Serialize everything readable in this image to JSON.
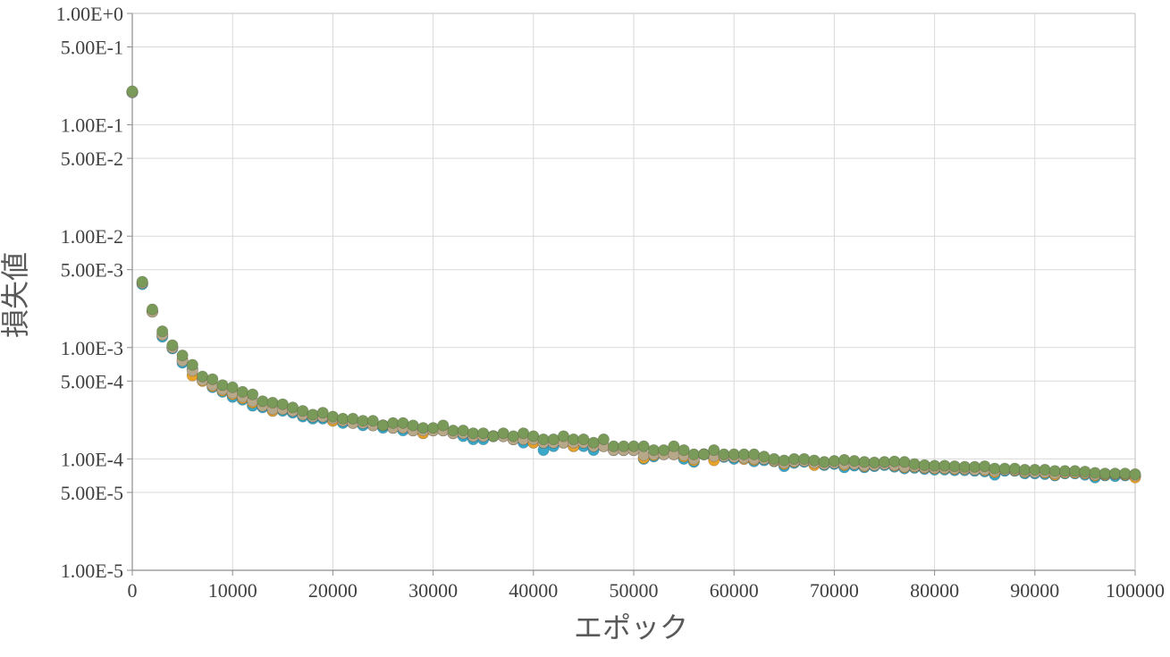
{
  "chart_data": {
    "type": "scatter",
    "title": "",
    "xlabel": "エポック",
    "ylabel": "損失値",
    "y_scale": "log",
    "xlim": [
      0,
      100000
    ],
    "ylim": [
      1e-05,
      1
    ],
    "grid": true,
    "legend": "none",
    "x_ticks": [
      0,
      10000,
      20000,
      30000,
      40000,
      50000,
      60000,
      70000,
      80000,
      90000,
      100000
    ],
    "x_tick_labels": [
      "0",
      "10000",
      "20000",
      "30000",
      "40000",
      "50000",
      "60000",
      "70000",
      "80000",
      "90000",
      "100000"
    ],
    "y_ticks": [
      1,
      0.5,
      0.1,
      0.05,
      0.01,
      0.005,
      0.001,
      0.0005,
      0.0001,
      5e-05,
      1e-05
    ],
    "y_tick_labels": [
      "1.00E+0",
      "5.00E-1",
      "1.00E-1",
      "5.00E-2",
      "1.00E-2",
      "5.00E-3",
      "1.00E-3",
      "5.00E-4",
      "1.00E-4",
      "5.00E-5",
      "1.00E-5"
    ],
    "series": [
      {
        "color": "#3aa8c8",
        "x": [
          0,
          1000,
          2000,
          3000,
          4000,
          5000,
          6000,
          7000,
          8000,
          9000,
          10000,
          11000,
          12000,
          13000,
          14000,
          15000,
          16000,
          17000,
          18000,
          19000,
          20000,
          21000,
          22000,
          23000,
          24000,
          25000,
          26000,
          27000,
          28000,
          29000,
          30000,
          31000,
          32000,
          33000,
          34000,
          35000,
          36000,
          37000,
          38000,
          39000,
          40000,
          41000,
          42000,
          43000,
          44000,
          45000,
          46000,
          47000,
          48000,
          49000,
          50000,
          51000,
          52000,
          53000,
          54000,
          55000,
          56000,
          57000,
          58000,
          59000,
          60000,
          61000,
          62000,
          63000,
          64000,
          65000,
          66000,
          67000,
          68000,
          69000,
          70000,
          71000,
          72000,
          73000,
          74000,
          75000,
          76000,
          77000,
          78000,
          79000,
          80000,
          81000,
          82000,
          83000,
          84000,
          85000,
          86000,
          87000,
          88000,
          89000,
          90000,
          91000,
          92000,
          93000,
          94000,
          95000,
          96000,
          97000,
          98000,
          99000,
          100000
        ],
        "y": [
          0.195,
          0.0037,
          0.0021,
          0.00125,
          0.00098,
          0.00073,
          0.00064,
          0.00052,
          0.00044,
          0.0004,
          0.00036,
          0.00034,
          0.0003,
          0.00029,
          0.00027,
          0.00027,
          0.00026,
          0.00024,
          0.00023,
          0.00023,
          0.00022,
          0.00021,
          0.00021,
          0.0002,
          0.0002,
          0.00019,
          0.00019,
          0.00018,
          0.00018,
          0.00017,
          0.00018,
          0.00018,
          0.00017,
          0.00016,
          0.00015,
          0.00015,
          0.00016,
          0.00016,
          0.00015,
          0.00014,
          0.00014,
          0.00012,
          0.00013,
          0.00014,
          0.00013,
          0.00013,
          0.00012,
          0.00013,
          0.00012,
          0.00012,
          0.00012,
          0.0001,
          0.000105,
          0.00011,
          0.00011,
          0.0001,
          9.4e-05,
          0.00011,
          0.000102,
          0.000104,
          0.0001,
          0.0001,
          9.5e-05,
          9.7e-05,
          9.5e-05,
          8.6e-05,
          9.2e-05,
          9.4e-05,
          9.1e-05,
          8.8e-05,
          9e-05,
          8.4e-05,
          8.7e-05,
          8.4e-05,
          8.6e-05,
          8.8e-05,
          8.5e-05,
          8.2e-05,
          8.3e-05,
          8.1e-05,
          8e-05,
          8e-05,
          7.9e-05,
          7.9e-05,
          7.8e-05,
          7.7e-05,
          7.2e-05,
          7.8e-05,
          7.8e-05,
          7.4e-05,
          7.4e-05,
          7.3e-05,
          7.1e-05,
          7.4e-05,
          7.4e-05,
          7.2e-05,
          6.8e-05,
          7.1e-05,
          7e-05,
          7.1e-05,
          7e-05
        ]
      },
      {
        "color": "#e8a32b",
        "x": [
          0,
          1000,
          2000,
          3000,
          4000,
          5000,
          6000,
          7000,
          8000,
          9000,
          10000,
          11000,
          12000,
          13000,
          14000,
          15000,
          16000,
          17000,
          18000,
          19000,
          20000,
          21000,
          22000,
          23000,
          24000,
          25000,
          26000,
          27000,
          28000,
          29000,
          30000,
          31000,
          32000,
          33000,
          34000,
          35000,
          36000,
          37000,
          38000,
          39000,
          40000,
          41000,
          42000,
          43000,
          44000,
          45000,
          46000,
          47000,
          48000,
          49000,
          50000,
          51000,
          52000,
          53000,
          54000,
          55000,
          56000,
          57000,
          58000,
          59000,
          60000,
          61000,
          62000,
          63000,
          64000,
          65000,
          66000,
          67000,
          68000,
          69000,
          70000,
          71000,
          72000,
          73000,
          74000,
          75000,
          76000,
          77000,
          78000,
          79000,
          80000,
          81000,
          82000,
          83000,
          84000,
          85000,
          86000,
          87000,
          88000,
          89000,
          90000,
          91000,
          92000,
          93000,
          94000,
          95000,
          96000,
          97000,
          98000,
          99000,
          100000
        ],
        "y": [
          0.198,
          0.0038,
          0.0021,
          0.0013,
          0.001,
          0.00078,
          0.00056,
          0.0005,
          0.00045,
          0.00041,
          0.00038,
          0.00035,
          0.00032,
          0.0003,
          0.00027,
          0.00028,
          0.00027,
          0.00025,
          0.00024,
          0.00024,
          0.00022,
          0.00022,
          0.00021,
          0.00021,
          0.0002,
          0.0002,
          0.00019,
          0.00019,
          0.00018,
          0.00017,
          0.00018,
          0.00018,
          0.00017,
          0.00017,
          0.00016,
          0.00016,
          0.00016,
          0.00016,
          0.00015,
          0.00015,
          0.00014,
          0.00014,
          0.00014,
          0.00014,
          0.00013,
          0.00014,
          0.00013,
          0.00013,
          0.00012,
          0.00012,
          0.00012,
          0.000102,
          0.000108,
          0.00011,
          0.00011,
          0.000105,
          9.7e-05,
          0.00011,
          9.7e-05,
          0.000106,
          0.000104,
          0.0001,
          9.8e-05,
          0.0001,
          9.6e-05,
          9e-05,
          9.4e-05,
          9.6e-05,
          8.8e-05,
          9e-05,
          9.2e-05,
          8.8e-05,
          9e-05,
          8.6e-05,
          8.8e-05,
          9e-05,
          8.7e-05,
          8.4e-05,
          8.5e-05,
          8.3e-05,
          8.2e-05,
          8.2e-05,
          8.1e-05,
          8.1e-05,
          8e-05,
          7.9e-05,
          7.6e-05,
          8e-05,
          7.9e-05,
          7.6e-05,
          7.6e-05,
          7.5e-05,
          7.2e-05,
          7.5e-05,
          7.5e-05,
          7.4e-05,
          7.1e-05,
          7.2e-05,
          7.3e-05,
          7.2e-05,
          6.8e-05
        ]
      },
      {
        "color": "#b8a88a",
        "x": [
          0,
          1000,
          2000,
          3000,
          4000,
          5000,
          6000,
          7000,
          8000,
          9000,
          10000,
          11000,
          12000,
          13000,
          14000,
          15000,
          16000,
          17000,
          18000,
          19000,
          20000,
          21000,
          22000,
          23000,
          24000,
          25000,
          26000,
          27000,
          28000,
          29000,
          30000,
          31000,
          32000,
          33000,
          34000,
          35000,
          36000,
          37000,
          38000,
          39000,
          40000,
          41000,
          42000,
          43000,
          44000,
          45000,
          46000,
          47000,
          48000,
          49000,
          50000,
          51000,
          52000,
          53000,
          54000,
          55000,
          56000,
          57000,
          58000,
          59000,
          60000,
          61000,
          62000,
          63000,
          64000,
          65000,
          66000,
          67000,
          68000,
          69000,
          70000,
          71000,
          72000,
          73000,
          74000,
          75000,
          76000,
          77000,
          78000,
          79000,
          80000,
          81000,
          82000,
          83000,
          84000,
          85000,
          86000,
          87000,
          88000,
          89000,
          90000,
          91000,
          92000,
          93000,
          94000,
          95000,
          96000,
          97000,
          98000,
          99000,
          100000
        ],
        "y": [
          0.196,
          0.0038,
          0.0021,
          0.0013,
          0.001,
          0.00076,
          0.00062,
          0.00051,
          0.00046,
          0.00042,
          0.00039,
          0.00036,
          0.00033,
          0.0003,
          0.00028,
          0.00028,
          0.00027,
          0.00025,
          0.00024,
          0.00024,
          0.00023,
          0.00022,
          0.00021,
          0.00021,
          0.0002,
          0.0002,
          0.00019,
          0.00019,
          0.00018,
          0.00018,
          0.00018,
          0.00018,
          0.00017,
          0.00017,
          0.00016,
          0.00016,
          0.00016,
          0.00016,
          0.00015,
          0.00015,
          0.00015,
          0.00014,
          0.00014,
          0.00014,
          0.00014,
          0.00014,
          0.00013,
          0.00013,
          0.00012,
          0.00012,
          0.00012,
          0.000108,
          0.00011,
          0.00011,
          0.00011,
          0.000108,
          0.0001,
          0.00011,
          0.000106,
          0.000106,
          0.000104,
          0.000102,
          0.0001,
          0.0001,
          9.7e-05,
          9.2e-05,
          9.5e-05,
          9.6e-05,
          9.2e-05,
          9e-05,
          9.2e-05,
          9e-05,
          9e-05,
          8.7e-05,
          8.8e-05,
          9e-05,
          8.8e-05,
          8.5e-05,
          8.6e-05,
          8.4e-05,
          8.3e-05,
          8.3e-05,
          8.2e-05,
          8.2e-05,
          8e-05,
          8e-05,
          7.8e-05,
          8e-05,
          8e-05,
          7.7e-05,
          7.6e-05,
          7.6e-05,
          7.4e-05,
          7.6e-05,
          7.6e-05,
          7.5e-05,
          7.2e-05,
          7.3e-05,
          7.3e-05,
          7.3e-05,
          7.1e-05
        ]
      },
      {
        "color": "#7a9a5a",
        "x": [
          0,
          1000,
          2000,
          3000,
          4000,
          5000,
          6000,
          7000,
          8000,
          9000,
          10000,
          11000,
          12000,
          13000,
          14000,
          15000,
          16000,
          17000,
          18000,
          19000,
          20000,
          21000,
          22000,
          23000,
          24000,
          25000,
          26000,
          27000,
          28000,
          29000,
          30000,
          31000,
          32000,
          33000,
          34000,
          35000,
          36000,
          37000,
          38000,
          39000,
          40000,
          41000,
          42000,
          43000,
          44000,
          45000,
          46000,
          47000,
          48000,
          49000,
          50000,
          51000,
          52000,
          53000,
          54000,
          55000,
          56000,
          57000,
          58000,
          59000,
          60000,
          61000,
          62000,
          63000,
          64000,
          65000,
          66000,
          67000,
          68000,
          69000,
          70000,
          71000,
          72000,
          73000,
          74000,
          75000,
          76000,
          77000,
          78000,
          79000,
          80000,
          81000,
          82000,
          83000,
          84000,
          85000,
          86000,
          87000,
          88000,
          89000,
          90000,
          91000,
          92000,
          93000,
          94000,
          95000,
          96000,
          97000,
          98000,
          99000,
          100000
        ],
        "y": [
          0.2,
          0.0039,
          0.0022,
          0.0014,
          0.00105,
          0.00085,
          0.0007,
          0.00055,
          0.00052,
          0.00046,
          0.00044,
          0.0004,
          0.00038,
          0.00033,
          0.00032,
          0.00031,
          0.00029,
          0.00027,
          0.00025,
          0.00026,
          0.00024,
          0.00023,
          0.00023,
          0.00022,
          0.00022,
          0.0002,
          0.00021,
          0.00021,
          0.0002,
          0.00019,
          0.00019,
          0.0002,
          0.00018,
          0.00018,
          0.00017,
          0.00017,
          0.00016,
          0.00017,
          0.00016,
          0.00017,
          0.00016,
          0.00015,
          0.00015,
          0.00016,
          0.00015,
          0.00015,
          0.00014,
          0.00015,
          0.00013,
          0.00013,
          0.00013,
          0.00013,
          0.00012,
          0.00012,
          0.00013,
          0.00012,
          0.00011,
          0.00011,
          0.00012,
          0.00011,
          0.00011,
          0.00011,
          0.00011,
          0.000105,
          0.0001,
          9.7e-05,
          0.0001,
          0.0001,
          9.7e-05,
          9.4e-05,
          9.6e-05,
          9.8e-05,
          9.6e-05,
          9.4e-05,
          9.3e-05,
          9.4e-05,
          9.5e-05,
          9.4e-05,
          9e-05,
          8.8e-05,
          8.7e-05,
          8.7e-05,
          8.6e-05,
          8.5e-05,
          8.5e-05,
          8.6e-05,
          8.2e-05,
          8.2e-05,
          8.2e-05,
          8e-05,
          8e-05,
          8e-05,
          7.8e-05,
          7.8e-05,
          7.8e-05,
          7.7e-05,
          7.5e-05,
          7.4e-05,
          7.4e-05,
          7.4e-05,
          7.3e-05
        ]
      }
    ]
  }
}
